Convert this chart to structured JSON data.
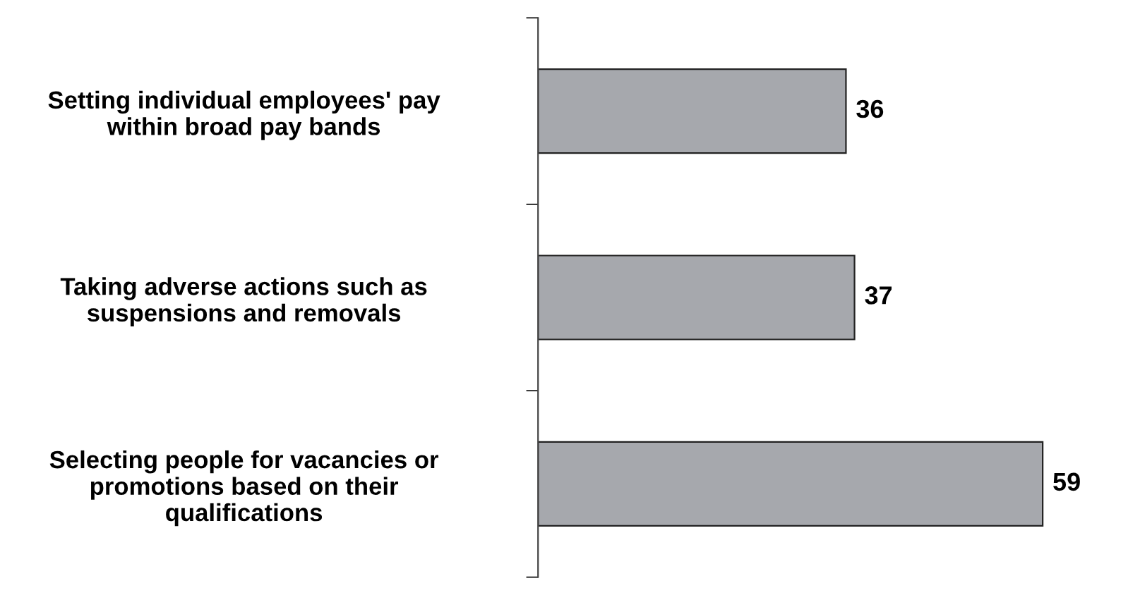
{
  "chart_data": {
    "type": "bar",
    "orientation": "horizontal",
    "categories": [
      "Setting individual employees' pay\nwithin broad pay bands",
      "Taking adverse actions such as\nsuspensions and removals",
      "Selecting people for vacancies or\npromotions based on their\nqualifications"
    ],
    "values": [
      36,
      37,
      59
    ],
    "color": "#a6a8ad",
    "data_labels": true,
    "grid": false,
    "legend": false
  }
}
